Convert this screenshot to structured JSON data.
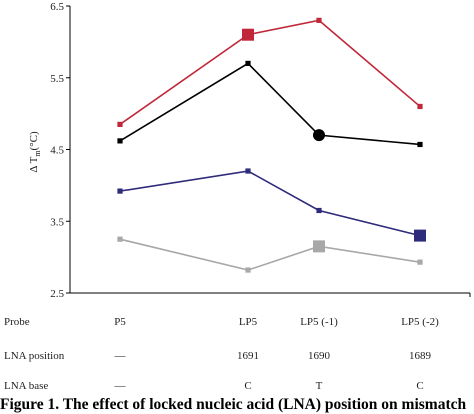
{
  "chart_data": {
    "type": "line",
    "categories": [
      "P5",
      "LP5",
      "LP5 (-1)",
      "LP5 (-2)"
    ],
    "ylabel": "Δ T",
    "ylabel_sub": "m",
    "ylabel_unit": "(°C)",
    "ylim": [
      2.5,
      6.5
    ],
    "yticks": [
      "6.5",
      "5.5",
      "4.5",
      "3.5",
      "2.5"
    ],
    "grid": false,
    "legend": "none",
    "series": [
      {
        "color": "#c0283a",
        "values": [
          4.85,
          6.1,
          6.3,
          5.1
        ],
        "big_marker_index": 1
      },
      {
        "color": "#000000",
        "values": [
          4.62,
          5.7,
          4.7,
          4.57
        ],
        "big_marker_index": 2
      },
      {
        "color": "#2e2b7a",
        "values": [
          3.92,
          4.2,
          3.65,
          3.3
        ],
        "big_marker_index": 3
      },
      {
        "color": "#a8a8a8",
        "values": [
          3.25,
          2.82,
          3.15,
          2.93
        ],
        "big_marker_index": 2
      }
    ]
  },
  "table": {
    "rows": [
      {
        "label": "Probe",
        "cells": [
          "P5",
          "LP5",
          "LP5 (-1)",
          "LP5 (-2)"
        ]
      },
      {
        "label": "LNA position",
        "cells": [
          "—",
          "1691",
          "1690",
          "1689"
        ]
      },
      {
        "label": "LNA base",
        "cells": [
          "—",
          "C",
          "T",
          "C"
        ]
      }
    ]
  },
  "caption": "Figure 1. The effect of locked nucleic acid (LNA) position on mismatch"
}
